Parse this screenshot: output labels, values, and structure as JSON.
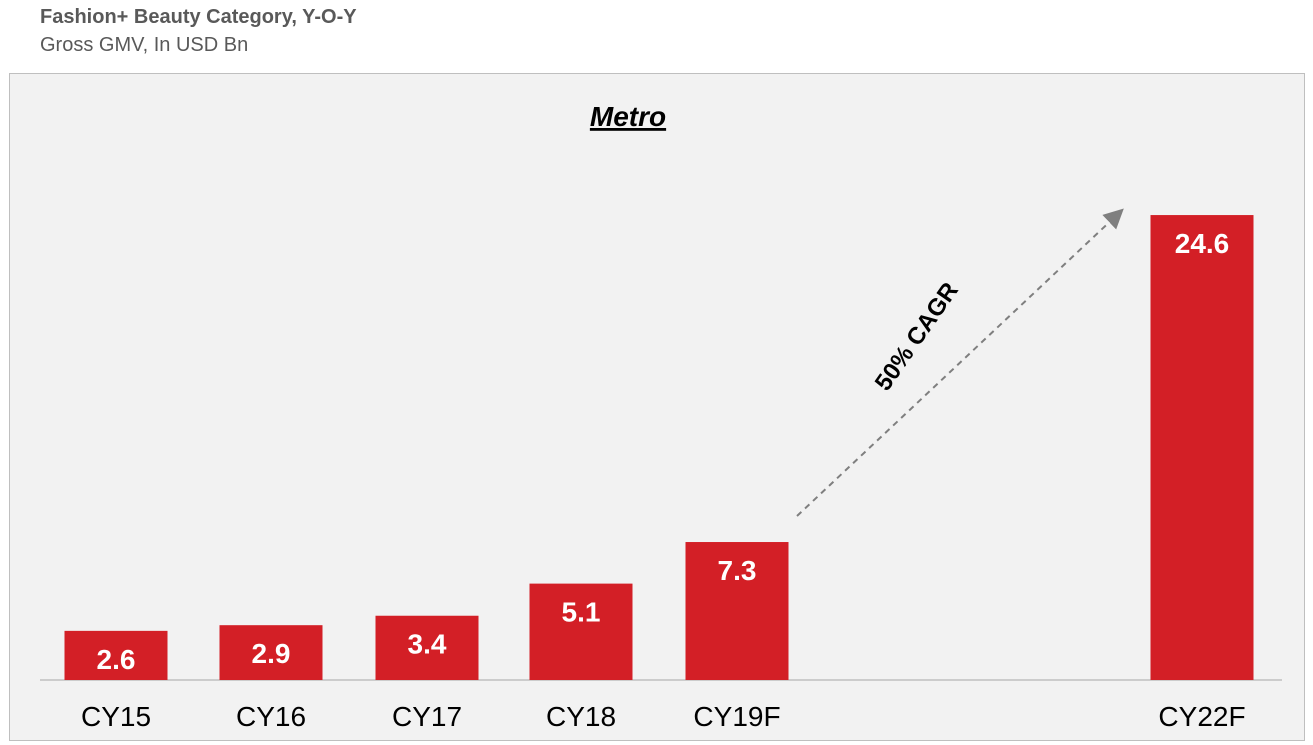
{
  "header": {
    "title": "Fashion+ Beauty Category, Y-O-Y",
    "subtitle": "Gross GMV, In USD Bn"
  },
  "chart_data": {
    "type": "bar",
    "title": "Metro",
    "categories": [
      "CY15",
      "CY16",
      "CY17",
      "CY18",
      "CY19F",
      "CY22F"
    ],
    "values": [
      2.6,
      2.9,
      3.4,
      5.1,
      7.3,
      24.6
    ],
    "value_labels": [
      "2.6",
      "2.9",
      "3.4",
      "5.1",
      "7.3",
      "24.6"
    ],
    "annotation": "50% CAGR",
    "colors": {
      "bar": "#d31f26",
      "bar_label": "#ffffff",
      "axis": "#bfbfbf",
      "arrow": "#7f7f7f",
      "text": "#000000"
    },
    "xlabel": "",
    "ylabel": ""
  }
}
